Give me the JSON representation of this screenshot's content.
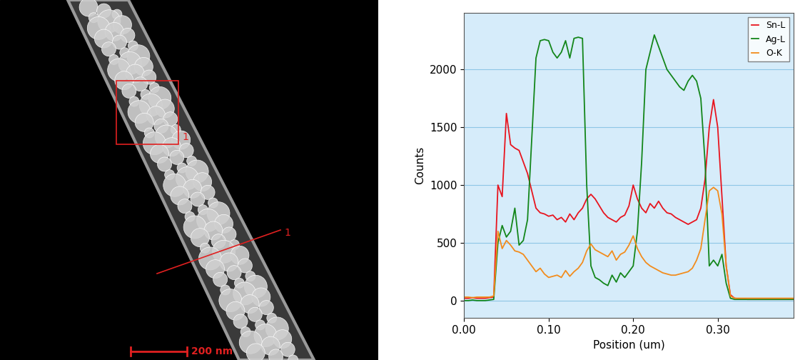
{
  "image": {
    "region_label": "1",
    "line_label": "1",
    "scale_bar": "200 nm"
  },
  "chart_data": {
    "type": "line",
    "xlabel": "Position (um)",
    "ylabel": "Counts",
    "x": [
      0.0,
      0.005,
      0.01,
      0.015,
      0.02,
      0.025,
      0.03,
      0.035,
      0.04,
      0.045,
      0.05,
      0.055,
      0.06,
      0.065,
      0.07,
      0.075,
      0.08,
      0.085,
      0.09,
      0.095,
      0.1,
      0.105,
      0.11,
      0.115,
      0.12,
      0.125,
      0.13,
      0.135,
      0.14,
      0.145,
      0.15,
      0.155,
      0.16,
      0.165,
      0.17,
      0.175,
      0.18,
      0.185,
      0.19,
      0.195,
      0.2,
      0.205,
      0.21,
      0.215,
      0.22,
      0.225,
      0.23,
      0.235,
      0.24,
      0.245,
      0.25,
      0.255,
      0.26,
      0.265,
      0.27,
      0.275,
      0.28,
      0.285,
      0.29,
      0.295,
      0.3,
      0.305,
      0.31,
      0.315,
      0.32,
      0.325,
      0.33,
      0.335,
      0.34,
      0.345,
      0.35,
      0.355,
      0.36,
      0.365,
      0.37,
      0.375,
      0.38,
      0.385,
      0.39
    ],
    "series": [
      {
        "name": "Sn-L",
        "color": "#e8141e",
        "values": [
          20,
          20,
          25,
          20,
          20,
          20,
          25,
          30,
          1000,
          900,
          1620,
          1350,
          1320,
          1300,
          1200,
          1100,
          950,
          800,
          760,
          750,
          730,
          740,
          700,
          720,
          680,
          750,
          700,
          760,
          800,
          880,
          920,
          880,
          820,
          760,
          720,
          700,
          680,
          720,
          740,
          820,
          1000,
          880,
          800,
          760,
          840,
          800,
          860,
          800,
          760,
          750,
          720,
          700,
          680,
          660,
          680,
          700,
          800,
          1050,
          1500,
          1740,
          1500,
          900,
          300,
          50,
          20,
          15,
          15,
          10,
          10,
          10,
          10,
          10,
          10,
          10,
          10,
          10,
          10,
          10,
          10
        ]
      },
      {
        "name": "Ag-L",
        "color": "#13861a",
        "values": [
          0,
          0,
          5,
          0,
          0,
          0,
          5,
          10,
          500,
          650,
          550,
          600,
          800,
          480,
          520,
          700,
          1400,
          2100,
          2250,
          2260,
          2250,
          2150,
          2100,
          2150,
          2250,
          2100,
          2270,
          2280,
          2270,
          1000,
          300,
          200,
          180,
          150,
          130,
          220,
          160,
          240,
          200,
          250,
          300,
          600,
          1200,
          2000,
          2150,
          2300,
          2200,
          2100,
          2000,
          1950,
          1900,
          1850,
          1820,
          1900,
          1950,
          1900,
          1750,
          1200,
          300,
          350,
          300,
          400,
          150,
          20,
          10,
          10,
          10,
          10,
          10,
          10,
          10,
          10,
          10,
          10,
          10,
          10,
          10,
          10,
          10
        ]
      },
      {
        "name": "O-K",
        "color": "#f28c1c",
        "values": [
          30,
          30,
          25,
          30,
          30,
          30,
          30,
          40,
          600,
          450,
          520,
          480,
          430,
          420,
          400,
          350,
          300,
          250,
          280,
          230,
          200,
          210,
          220,
          200,
          260,
          210,
          250,
          280,
          330,
          430,
          490,
          440,
          420,
          400,
          380,
          430,
          350,
          400,
          420,
          480,
          560,
          450,
          380,
          330,
          300,
          280,
          260,
          240,
          230,
          220,
          220,
          230,
          240,
          250,
          280,
          350,
          450,
          700,
          950,
          980,
          950,
          750,
          300,
          40,
          20,
          20,
          20,
          20,
          20,
          20,
          20,
          20,
          20,
          20,
          20,
          20,
          20,
          20,
          20
        ]
      }
    ],
    "xlim": [
      0,
      0.39
    ],
    "xticks": [
      {
        "value": 0,
        "label": "0.00"
      },
      {
        "value": 0.1,
        "label": "0.10"
      },
      {
        "value": 0.2,
        "label": "0.20"
      },
      {
        "value": 0.3,
        "label": "0.30"
      }
    ],
    "ylim": [
      -150,
      2490
    ],
    "yticks": [
      0,
      500,
      1000,
      1500,
      2000
    ],
    "grid": true,
    "legend": "upper right"
  }
}
